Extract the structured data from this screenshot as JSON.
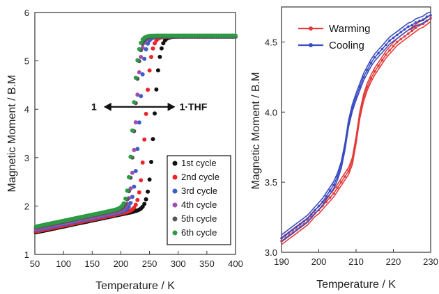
{
  "chart_data": [
    {
      "type": "scatter",
      "xlabel": "Temperature / K",
      "ylabel": "Magnetic Moment / B.M",
      "xlim": [
        50,
        400
      ],
      "ylim": [
        1,
        6
      ],
      "xticks": [
        "50",
        "100",
        "150",
        "200",
        "250",
        "300",
        "350",
        "400"
      ],
      "yticks": [
        "1",
        "2",
        "3",
        "4",
        "5",
        "6"
      ],
      "legend_position": "bottom-right",
      "annotation": {
        "left": "1",
        "right": "1·THF",
        "y": 4.05,
        "x_from": 170,
        "x_to": 295
      },
      "series": [
        {
          "name": "1st cycle",
          "color": "#111111",
          "t_half": 258,
          "width": 20,
          "low": 1.45,
          "high": 5.5,
          "slope": 0.0025
        },
        {
          "name": "2nd cycle",
          "color": "#e8262b",
          "t_half": 243,
          "width": 20,
          "low": 1.47,
          "high": 5.5,
          "slope": 0.0025
        },
        {
          "name": "3rd cycle",
          "color": "#3a5fc8",
          "t_half": 232,
          "width": 19,
          "low": 1.5,
          "high": 5.5,
          "slope": 0.0025
        },
        {
          "name": "4th cycle",
          "color": "#a04fb0",
          "t_half": 226,
          "width": 18,
          "low": 1.52,
          "high": 5.5,
          "slope": 0.0025
        },
        {
          "name": "5th cycle",
          "color": "#555555",
          "t_half": 224,
          "width": 18,
          "low": 1.55,
          "high": 5.5,
          "slope": 0.0025
        },
        {
          "name": "6th cycle",
          "color": "#2e9a45",
          "t_half": 221,
          "width": 18,
          "low": 1.57,
          "high": 5.52,
          "slope": 0.0025
        }
      ]
    },
    {
      "type": "line",
      "xlabel": "Temperature / K",
      "ylabel": "Magnetic Moment / B.M",
      "xlim": [
        190,
        230
      ],
      "ylim": [
        3.0,
        4.75
      ],
      "xticks": [
        "190",
        "200",
        "210",
        "220",
        "230"
      ],
      "yticks": [
        "3.0",
        "3.5",
        "4.0",
        "4.5"
      ],
      "legend_position": "top-left",
      "series": [
        {
          "name": "Warming",
          "color": "#e33b3b",
          "x": [
            190,
            191,
            192,
            193,
            194,
            195,
            196,
            197,
            198,
            199,
            200,
            201,
            202,
            203,
            204,
            205,
            206,
            207,
            208,
            209,
            210,
            211,
            212,
            213,
            214,
            215,
            216,
            217,
            218,
            219,
            220,
            221,
            222,
            223,
            224,
            225,
            226,
            227,
            228,
            229,
            230
          ],
          "y": [
            3.08,
            3.1,
            3.12,
            3.14,
            3.16,
            3.18,
            3.2,
            3.22,
            3.25,
            3.28,
            3.3,
            3.33,
            3.36,
            3.39,
            3.42,
            3.46,
            3.5,
            3.54,
            3.58,
            3.65,
            3.8,
            3.98,
            4.1,
            4.18,
            4.24,
            4.29,
            4.33,
            4.37,
            4.41,
            4.44,
            4.47,
            4.5,
            4.52,
            4.54,
            4.56,
            4.58,
            4.6,
            4.62,
            4.63,
            4.65,
            4.67
          ]
        },
        {
          "name": "Cooling",
          "color": "#3a4cc0",
          "x": [
            190,
            191,
            192,
            193,
            194,
            195,
            196,
            197,
            198,
            199,
            200,
            201,
            202,
            203,
            204,
            205,
            206,
            207,
            208,
            209,
            210,
            211,
            212,
            213,
            214,
            215,
            216,
            217,
            218,
            219,
            220,
            221,
            222,
            223,
            224,
            225,
            226,
            227,
            228,
            229,
            230
          ],
          "y": [
            3.1,
            3.12,
            3.14,
            3.16,
            3.18,
            3.2,
            3.22,
            3.24,
            3.27,
            3.3,
            3.33,
            3.36,
            3.4,
            3.44,
            3.48,
            3.54,
            3.62,
            3.75,
            3.92,
            4.03,
            4.11,
            4.18,
            4.25,
            4.3,
            4.35,
            4.39,
            4.42,
            4.45,
            4.48,
            4.51,
            4.53,
            4.55,
            4.57,
            4.59,
            4.61,
            4.62,
            4.64,
            4.65,
            4.66,
            4.68,
            4.69
          ]
        }
      ]
    }
  ]
}
